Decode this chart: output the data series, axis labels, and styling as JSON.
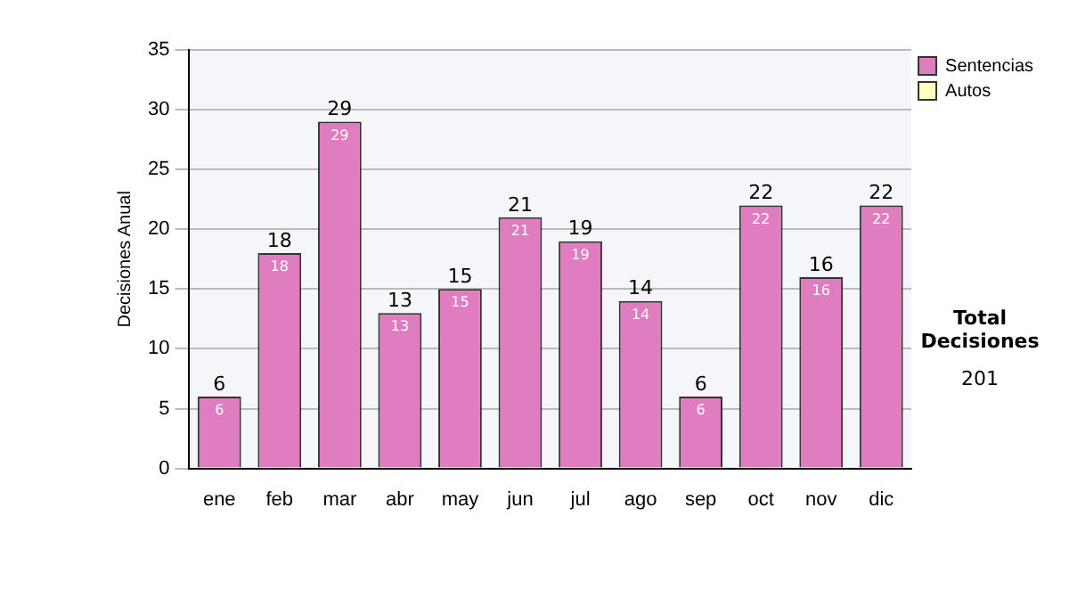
{
  "chart_data": {
    "type": "bar",
    "ylabel": "Decisiones Anual",
    "categories": [
      "ene",
      "feb",
      "mar",
      "abr",
      "may",
      "jun",
      "jul",
      "ago",
      "sep",
      "oct",
      "nov",
      "dic"
    ],
    "series": [
      {
        "name": "Sentencias",
        "color": "#e07cc0",
        "values": [
          6,
          18,
          29,
          13,
          15,
          21,
          19,
          14,
          6,
          22,
          16,
          22
        ],
        "value_labels": [
          "6",
          "18",
          "29",
          "13",
          "15",
          "21",
          "19",
          "14",
          "6",
          "22",
          "16",
          "22"
        ]
      },
      {
        "name": "Autos",
        "color": "#ffffc0",
        "values": [
          0,
          0,
          0,
          0,
          0,
          0,
          0,
          0,
          0,
          0,
          0,
          0
        ]
      }
    ],
    "stacked": true,
    "totals": [
      "6",
      "18",
      "29",
      "13",
      "15",
      "21",
      "19",
      "14",
      "6",
      "22",
      "16",
      "22"
    ],
    "ylim": [
      0,
      35
    ],
    "yticks": [
      0,
      5,
      10,
      15,
      20,
      25,
      30,
      35
    ],
    "grid": "y",
    "legend": "right",
    "annotations": [
      "Total Decisiones",
      "201"
    ]
  }
}
